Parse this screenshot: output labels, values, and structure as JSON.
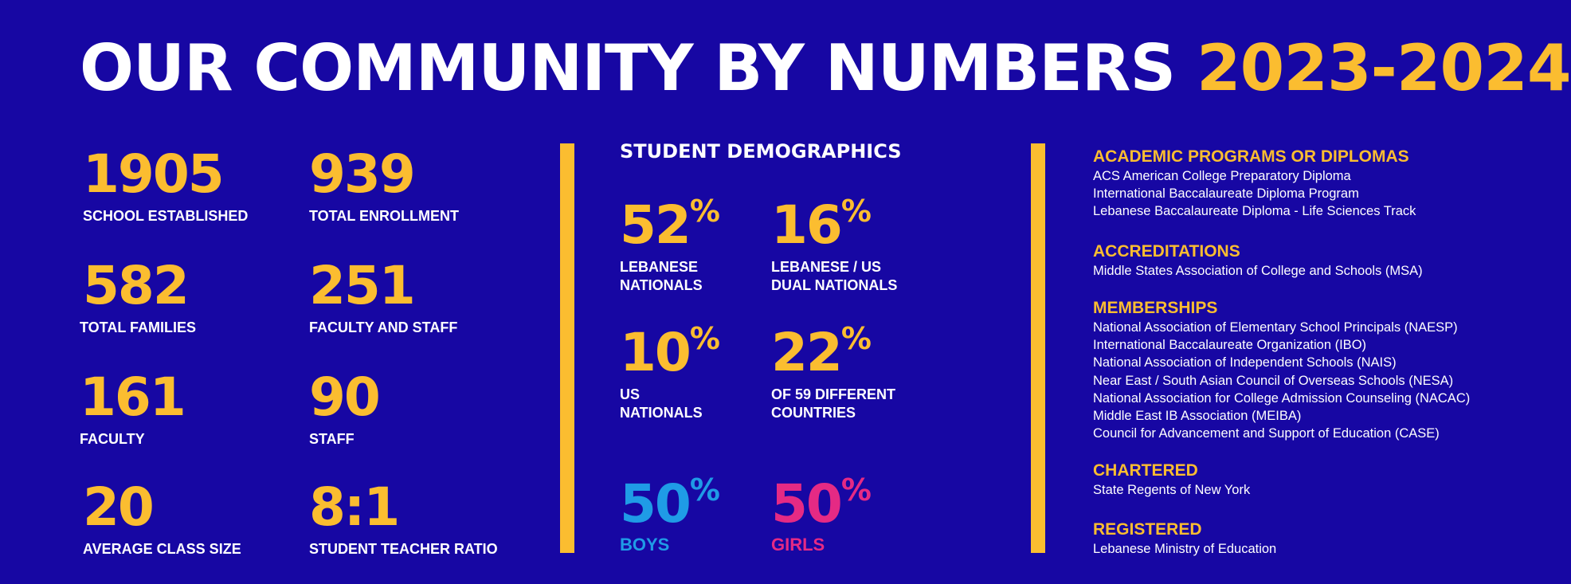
{
  "title": {
    "main": "OUR COMMUNITY BY NUMBERS",
    "years": "2023-2024"
  },
  "colors": {
    "background": "#1707a3",
    "accent": "#fbbd30",
    "boys": "#1f9be6",
    "girls": "#e52a84",
    "text": "#ffffff"
  },
  "stats": [
    {
      "value": "1905",
      "label": "SCHOOL ESTABLISHED"
    },
    {
      "value": "939",
      "label": "TOTAL ENROLLMENT"
    },
    {
      "value": "582",
      "label": "TOTAL FAMILIES"
    },
    {
      "value": "251",
      "label": "FACULTY AND STAFF"
    },
    {
      "value": "161",
      "label": "FACULTY"
    },
    {
      "value": "90",
      "label": "STAFF"
    },
    {
      "value": "20",
      "label": "AVERAGE CLASS SIZE"
    },
    {
      "value": "8:1",
      "label": "STUDENT TEACHER RATIO"
    }
  ],
  "demographics": {
    "heading": "STUDENT DEMOGRAPHICS",
    "percent_sign": "%",
    "items": [
      {
        "value": "52",
        "label_line1": "LEBANESE",
        "label_line2": "NATIONALS"
      },
      {
        "value": "16",
        "label_line1": "LEBANESE / US",
        "label_line2": "DUAL NATIONALS"
      },
      {
        "value": "10",
        "label_line1": "US",
        "label_line2": "NATIONALS"
      },
      {
        "value": "22",
        "label_line1": "OF 59 DIFFERENT",
        "label_line2": "COUNTRIES"
      }
    ],
    "gender": [
      {
        "value": "50",
        "label": "BOYS"
      },
      {
        "value": "50",
        "label": "GIRLS"
      }
    ]
  },
  "info": {
    "programs": {
      "heading": "ACADEMIC PROGRAMS OR DIPLOMAS",
      "items": [
        "ACS American College Preparatory Diploma",
        "International Baccalaureate Diploma Program",
        "Lebanese Baccalaureate Diploma - Life Sciences Track"
      ]
    },
    "accreditations": {
      "heading": "ACCREDITATIONS",
      "items": [
        "Middle States Association of College and Schools (MSA)"
      ]
    },
    "memberships": {
      "heading": "MEMBERSHIPS",
      "items": [
        "National Association of Elementary School Principals (NAESP)",
        "International Baccalaureate Organization (IBO)",
        "National Association of Independent Schools (NAIS)",
        "Near East / South Asian Council of Overseas Schools (NESA)",
        "National Association for College Admission Counseling (NACAC)",
        "Middle East IB Association (MEIBA)",
        "Council for Advancement and Support of Education (CASE)"
      ]
    },
    "chartered": {
      "heading": "CHARTERED",
      "items": [
        "State Regents of New York"
      ]
    },
    "registered": {
      "heading": "REGISTERED",
      "items": [
        "Lebanese Ministry of Education"
      ]
    }
  }
}
